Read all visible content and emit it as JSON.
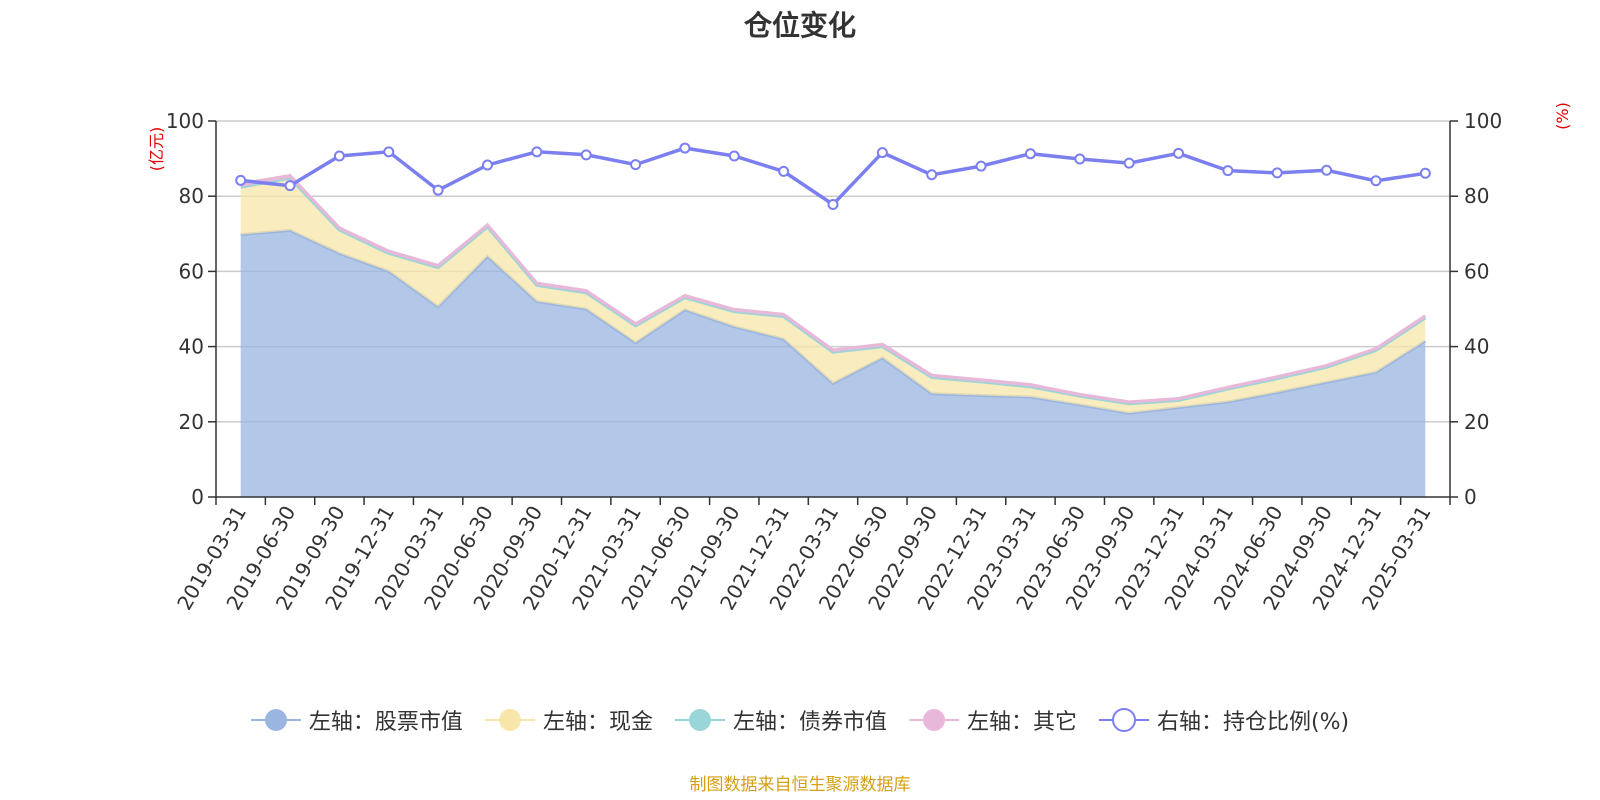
{
  "title": "仓位变化",
  "source": "制图数据来自恒生聚源数据库",
  "chart_data": {
    "type": "area",
    "title": "仓位变化",
    "x": [
      "2019-03-31",
      "2019-06-30",
      "2019-09-30",
      "2019-12-31",
      "2020-03-31",
      "2020-06-30",
      "2020-09-30",
      "2020-12-31",
      "2021-03-31",
      "2021-06-30",
      "2021-09-30",
      "2021-12-31",
      "2022-03-31",
      "2022-06-30",
      "2022-09-30",
      "2022-12-31",
      "2023-03-31",
      "2023-06-30",
      "2023-09-30",
      "2023-12-31",
      "2024-03-31",
      "2024-06-30",
      "2024-09-30",
      "2024-12-31",
      "2025-03-31"
    ],
    "left_axis": {
      "unit": "(亿元)",
      "ylim": [
        0,
        100
      ],
      "ticks": [
        0,
        20,
        40,
        60,
        80,
        100
      ]
    },
    "right_axis": {
      "unit": "(%)",
      "ylim": [
        0,
        100
      ],
      "ticks": [
        0,
        20,
        40,
        60,
        80,
        100
      ]
    },
    "grid": true,
    "legend_position": "bottom",
    "series": [
      {
        "name": "左轴：股票市值",
        "axis": "left",
        "kind": "stacked-area",
        "color": "#9ab5e0",
        "values": [
          69.8,
          70.9,
          64.8,
          60.0,
          50.6,
          64.0,
          52.0,
          50.0,
          41.0,
          49.8,
          45.3,
          42.0,
          30.2,
          37.0,
          27.5,
          27.0,
          26.6,
          24.5,
          22.3,
          23.8,
          25.3,
          27.8,
          30.5,
          33.2,
          41.5
        ]
      },
      {
        "name": "左轴：现金",
        "axis": "left",
        "kind": "stacked-area",
        "color": "#f7e6a8",
        "values": [
          12.6,
          13.9,
          6.2,
          4.8,
          10.4,
          7.8,
          4.3,
          4.3,
          4.5,
          3.2,
          4.0,
          6.0,
          8.3,
          3.0,
          4.3,
          3.6,
          2.7,
          2.3,
          2.5,
          1.9,
          3.4,
          3.7,
          4.0,
          5.8,
          6.1
        ]
      },
      {
        "name": "左轴：债券市值",
        "axis": "left",
        "kind": "stacked-area",
        "color": "#99d5d9",
        "values": [
          0,
          0,
          0,
          0,
          0,
          0,
          0,
          0,
          0,
          0,
          0,
          0,
          0,
          0,
          0,
          0,
          0,
          0,
          0,
          0,
          0,
          0,
          0,
          0,
          0
        ]
      },
      {
        "name": "左轴：其它",
        "axis": "left",
        "kind": "stacked-area",
        "color": "#e8b8d9",
        "values": [
          0.9,
          0.7,
          0.6,
          0.6,
          0.6,
          0.6,
          0.6,
          0.6,
          0.6,
          0.6,
          0.6,
          0.6,
          0.6,
          0.6,
          0.6,
          0.6,
          0.6,
          0.5,
          0.5,
          0.5,
          0.5,
          0.5,
          0.5,
          0.5,
          0.6
        ]
      },
      {
        "name": "右轴：持仓比例(%)",
        "axis": "right",
        "kind": "line",
        "color": "#7b7ff0",
        "values": [
          84.2,
          82.8,
          90.7,
          91.8,
          81.6,
          88.3,
          91.8,
          91.0,
          88.4,
          92.8,
          90.7,
          86.6,
          77.8,
          91.6,
          85.7,
          88.0,
          91.3,
          89.9,
          88.8,
          91.4,
          86.8,
          86.2,
          86.9,
          84.1,
          86.1
        ]
      }
    ]
  }
}
